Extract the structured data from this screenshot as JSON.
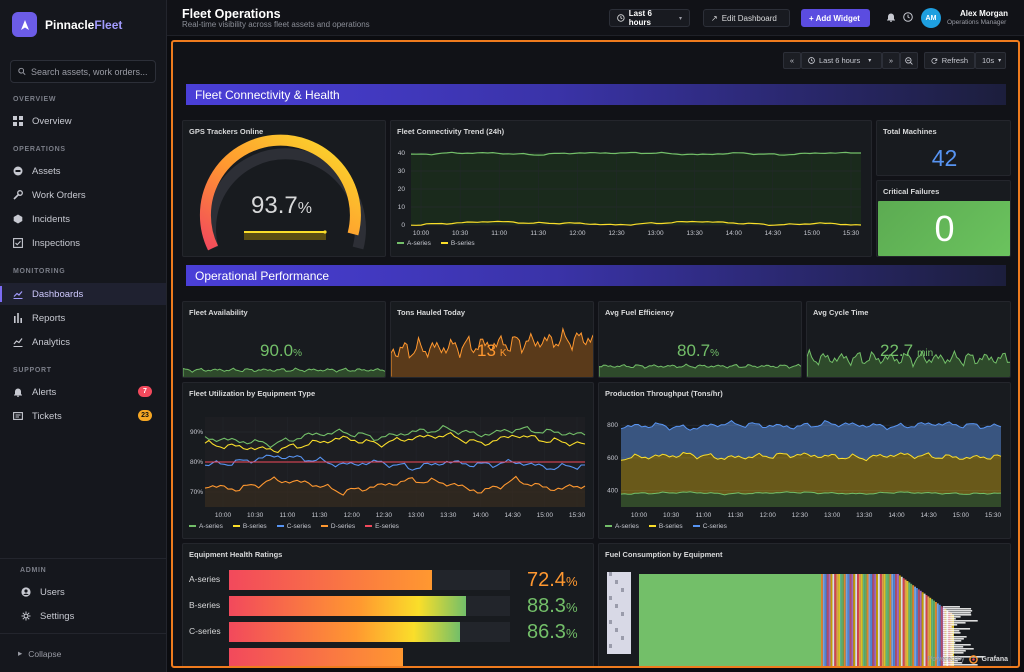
{
  "brand": {
    "name_a": "Pinnacle",
    "name_b": "Fleet"
  },
  "search": {
    "placeholder": "Search assets, work orders..."
  },
  "sidebar": {
    "sections": {
      "overview": "OVERVIEW",
      "operations": "OPERATIONS",
      "monitoring": "MONITORING",
      "support": "SUPPORT",
      "admin": "ADMIN"
    },
    "items": {
      "overview": "Overview",
      "assets": "Assets",
      "work_orders": "Work Orders",
      "incidents": "Incidents",
      "inspections": "Inspections",
      "dashboards": "Dashboards",
      "reports": "Reports",
      "analytics": "Analytics",
      "alerts": "Alerts",
      "tickets": "Tickets",
      "users": "Users",
      "settings": "Settings"
    },
    "badges": {
      "alerts": "7",
      "tickets": "23"
    },
    "collapse": "Collapse"
  },
  "header": {
    "title": "Fleet Operations",
    "subtitle": "Real-time visibility across fleet assets and operations",
    "time_range": "Last 6 hours",
    "edit": "Edit Dashboard",
    "add": "+ Add Widget",
    "avatar": "AM",
    "user_name": "Alex Morgan",
    "user_role": "Operations Manager"
  },
  "toolbar": {
    "time_range": "Last 6 hours",
    "refresh": "Refresh",
    "interval": "10s"
  },
  "rows": {
    "connectivity": "Fleet Connectivity & Health",
    "performance": "Operational Performance"
  },
  "panels": {
    "gps": {
      "title": "GPS Trackers Online",
      "value": "93.7",
      "unit": "%"
    },
    "trend": {
      "title": "Fleet Connectivity Trend (24h)"
    },
    "total": {
      "title": "Total Machines",
      "value": "42"
    },
    "critical": {
      "title": "Critical Failures",
      "value": "0"
    },
    "availability": {
      "title": "Fleet Availability",
      "value": "90.0",
      "unit": "%"
    },
    "tons": {
      "title": "Tons Hauled Today",
      "value": "13",
      "unit": "K"
    },
    "fuel_eff": {
      "title": "Avg Fuel Efficiency",
      "value": "80.7",
      "unit": "%"
    },
    "cycle": {
      "title": "Avg Cycle Time",
      "value": "22.7",
      "unit": "min"
    },
    "utilization": {
      "title": "Fleet Utilization by Equipment Type"
    },
    "throughput": {
      "title": "Production Throughput (Tons/hr)"
    },
    "health": {
      "title": "Equipment Health Ratings"
    },
    "fuel_cons": {
      "title": "Fuel Consumption by Equipment"
    }
  },
  "footer": {
    "powered_by": "Powered by",
    "product": "Grafana"
  },
  "colors": {
    "accent": "#5b4ce0",
    "frame": "#ee7b1e",
    "green": "#73bf69",
    "yellow": "#fade2a",
    "blue": "#5794f2",
    "orange": "#ff9830",
    "red": "#f2495c"
  },
  "chart_data": [
    {
      "type": "line",
      "title": "Fleet Connectivity Trend (24h)",
      "x": [
        "10:00",
        "10:30",
        "11:00",
        "11:30",
        "12:00",
        "12:30",
        "13:00",
        "13:30",
        "14:00",
        "14:30",
        "15:00",
        "15:30"
      ],
      "ylim": [
        0,
        40
      ],
      "yticks": [
        0,
        10,
        20,
        30,
        40
      ],
      "series": [
        {
          "name": "A-series",
          "values": [
            39,
            40,
            40,
            39,
            40,
            40,
            40,
            39,
            40,
            39,
            40,
            40
          ]
        },
        {
          "name": "B-series",
          "values": [
            0,
            1,
            2,
            1,
            1,
            0,
            1,
            2,
            1,
            0,
            1,
            0
          ]
        }
      ]
    },
    {
      "type": "line",
      "title": "Fleet Utilization by Equipment Type",
      "x": [
        "10:00",
        "10:30",
        "11:00",
        "11:30",
        "12:00",
        "12:30",
        "13:00",
        "13:30",
        "14:00",
        "14:30",
        "15:00",
        "15:30"
      ],
      "ylim": [
        65,
        95
      ],
      "yticks": [
        "70%",
        "80%",
        "90%"
      ],
      "series": [
        {
          "name": "A-series",
          "values": [
            88,
            87,
            86,
            89,
            90,
            88,
            90,
            91,
            89,
            91,
            90,
            89
          ]
        },
        {
          "name": "B-series",
          "values": [
            86,
            85,
            84,
            86,
            88,
            86,
            88,
            89,
            86,
            89,
            87,
            86
          ]
        },
        {
          "name": "C-series",
          "values": [
            79,
            80,
            82,
            81,
            79,
            80,
            78,
            80,
            79,
            80,
            78,
            79
          ]
        },
        {
          "name": "D-series",
          "values": [
            72,
            71,
            74,
            73,
            70,
            72,
            74,
            73,
            70,
            74,
            71,
            72
          ]
        },
        {
          "name": "E-series",
          "values": [
            80,
            80,
            80,
            80,
            80,
            80,
            80,
            80,
            80,
            80,
            80,
            80
          ]
        }
      ]
    },
    {
      "type": "area",
      "title": "Production Throughput (Tons/hr)",
      "x": [
        "10:00",
        "10:30",
        "11:00",
        "11:30",
        "12:00",
        "12:30",
        "13:00",
        "13:30",
        "14:00",
        "14:30",
        "15:00",
        "15:30"
      ],
      "ylim": [
        300,
        850
      ],
      "yticks": [
        400,
        600,
        800
      ],
      "series": [
        {
          "name": "A-series",
          "values": [
            380,
            385,
            390,
            380,
            385,
            390,
            385,
            380,
            390,
            385,
            380,
            385
          ]
        },
        {
          "name": "B-series",
          "values": [
            600,
            610,
            620,
            600,
            610,
            620,
            610,
            600,
            620,
            610,
            600,
            610
          ]
        },
        {
          "name": "C-series",
          "values": [
            790,
            800,
            780,
            810,
            800,
            790,
            810,
            800,
            790,
            810,
            800,
            790
          ]
        }
      ]
    },
    {
      "type": "bar",
      "title": "Equipment Health Ratings",
      "categories": [
        "A-series",
        "B-series",
        "C-series"
      ],
      "values": [
        72.4,
        88.3,
        86.3
      ],
      "unit": "%",
      "xlim": [
        0,
        100
      ]
    }
  ]
}
